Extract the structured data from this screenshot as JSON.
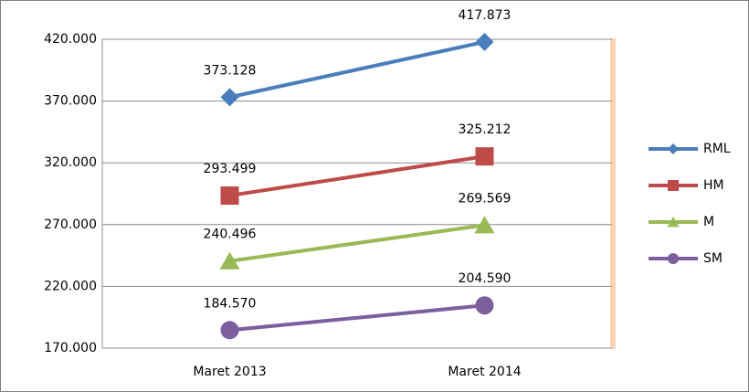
{
  "chart_data": {
    "type": "line",
    "categories": [
      "Maret 2013",
      "Maret 2014"
    ],
    "series": [
      {
        "name": "RML",
        "color": "#4a7ebb",
        "marker": "diamond",
        "values": [
          373128,
          417873
        ],
        "value_labels": [
          "373.128",
          "417.873"
        ]
      },
      {
        "name": "HM",
        "color": "#be4b48",
        "marker": "square",
        "values": [
          293499,
          325212
        ],
        "value_labels": [
          "293.499",
          "325.212"
        ]
      },
      {
        "name": "M",
        "color": "#98b954",
        "marker": "triangle",
        "values": [
          240496,
          269569
        ],
        "value_labels": [
          "240.496",
          "269.569"
        ]
      },
      {
        "name": "SM",
        "color": "#7d5fa0",
        "marker": "circle",
        "values": [
          184570,
          204590
        ],
        "value_labels": [
          "184.570",
          "204.590"
        ]
      }
    ],
    "ylim": [
      170000,
      420000
    ],
    "yticks": [
      {
        "value": 170000,
        "label": "170.000"
      },
      {
        "value": 220000,
        "label": "220.000"
      },
      {
        "value": 270000,
        "label": "270.000"
      },
      {
        "value": 320000,
        "label": "320.000"
      },
      {
        "value": 370000,
        "label": "370.000"
      },
      {
        "value": 420000,
        "label": "420.000"
      }
    ],
    "grid": true,
    "legend": "right"
  }
}
